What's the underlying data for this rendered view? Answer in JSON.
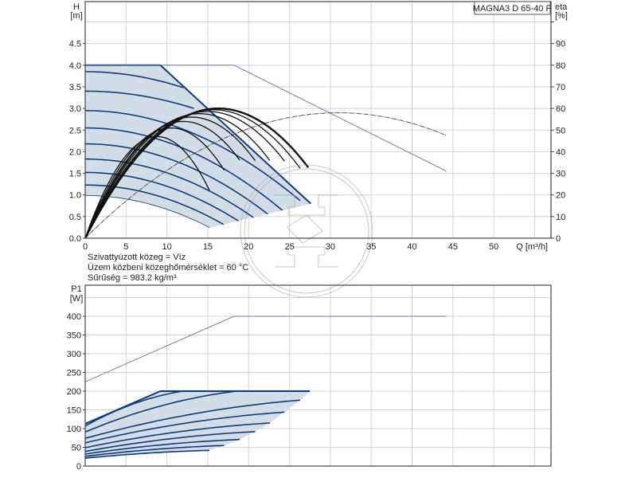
{
  "model_label": "MAGNA3 D 65-40 F",
  "fluid_info": [
    "Szivattyúzott közeg = Víz",
    "Üzem közbeni közeghőmérséklet = 60 °C",
    "Sűrűség = 983.2 kg/m³"
  ],
  "colors": {
    "speed_curve": "#0d3d80",
    "fill": "#d3dde8",
    "boundary_thin": "#6d82a6",
    "eta_curve": "#111111",
    "eta_max": "#555555",
    "grid": "#d2d2d2"
  },
  "chart_data": [
    {
      "type": "line",
      "panel": "head",
      "xlabel": "Q [m³/h]",
      "ylabel": [
        "H",
        "[m]"
      ],
      "y2label": [
        "eta",
        "[%]"
      ],
      "xlim": [
        0,
        57
      ],
      "ylim": [
        0,
        5.47
      ],
      "y2lim": [
        0,
        109.4
      ],
      "grid": true,
      "xticks": [
        0,
        5,
        10,
        15,
        20,
        25,
        30,
        35,
        40,
        45,
        50
      ],
      "xtick_labels": [
        "0",
        "5",
        "10",
        "15",
        "20",
        "25",
        "30",
        "35",
        "40",
        "45",
        "50"
      ],
      "yticks": [
        0,
        0.5,
        1,
        1.5,
        2,
        2.5,
        3,
        3.5,
        4,
        4.5
      ],
      "ytick_labels": [
        "0.0",
        "0.5",
        "1.0",
        "1.5",
        "2.0",
        "2.5",
        "3.0",
        "3.5",
        "4.0",
        "4.5"
      ],
      "y2ticks": [
        0,
        10,
        20,
        30,
        40,
        50,
        60,
        70,
        80,
        90
      ],
      "y2tick_labels": [
        "0",
        "10",
        "20",
        "30",
        "40",
        "50",
        "60",
        "70",
        "80",
        "90"
      ],
      "max_head_line": [
        [
          0,
          4.0
        ],
        [
          18.2,
          4.0
        ],
        [
          44.2,
          1.55
        ]
      ],
      "operating_area_boundary": [
        [
          0,
          4.0
        ],
        [
          9.2,
          4.0
        ],
        [
          27.6,
          0.8
        ]
      ],
      "speed_curves": [
        {
          "start": [
            0,
            3.85
          ],
          "end": [
            12.0,
            3.48
          ]
        },
        {
          "start": [
            0,
            3.4
          ],
          "end": [
            13.3,
            3.0
          ]
        },
        {
          "start": [
            0,
            2.95
          ],
          "end": [
            26.3,
            0.87
          ]
        },
        {
          "start": [
            0,
            2.55
          ],
          "end": [
            24.4,
            0.6
          ]
        },
        {
          "start": [
            0,
            2.18
          ],
          "end": [
            22.6,
            0.52
          ]
        },
        {
          "start": [
            0,
            1.83
          ],
          "end": [
            20.8,
            0.45
          ]
        },
        {
          "start": [
            0,
            1.52
          ],
          "end": [
            18.9,
            0.38
          ]
        },
        {
          "start": [
            0,
            1.23
          ],
          "end": [
            17.0,
            0.31
          ]
        },
        {
          "start": [
            0,
            0.98
          ],
          "end": [
            15.2,
            0.24
          ]
        }
      ],
      "efficiency_curves": [
        {
          "peak": [
            8.8,
            47
          ],
          "end_q": 15.2
        },
        {
          "peak": [
            10.5,
            51
          ],
          "end_q": 17.0
        },
        {
          "peak": [
            12.0,
            54
          ],
          "end_q": 18.9
        },
        {
          "peak": [
            13.0,
            56
          ],
          "end_q": 20.8
        },
        {
          "peak": [
            14.0,
            57.6
          ],
          "end_q": 22.6
        },
        {
          "peak": [
            15.0,
            58.6
          ],
          "end_q": 24.4
        },
        {
          "peak": [
            15.7,
            59.4
          ],
          "end_q": 26.3
        },
        {
          "peak": [
            16.3,
            60
          ],
          "end_q": 27.3,
          "bold": true
        }
      ],
      "max_efficiency_curve": {
        "peak": [
          31,
          58
        ],
        "end_q": 44.2
      }
    },
    {
      "type": "line",
      "panel": "power",
      "ylabel": [
        "P1",
        "[W]"
      ],
      "xlim": [
        0,
        57
      ],
      "ylim": [
        0,
        483
      ],
      "grid": true,
      "yticks": [
        0,
        50,
        100,
        150,
        200,
        250,
        300,
        350,
        400
      ],
      "ytick_labels": [
        "0",
        "50",
        "100",
        "150",
        "200",
        "250",
        "300",
        "350",
        "400"
      ],
      "max_power_line": [
        [
          0,
          225
        ],
        [
          18.2,
          400
        ],
        [
          44.2,
          400
        ]
      ],
      "operating_area_top": [
        [
          0,
          113
        ],
        [
          9.2,
          200
        ],
        [
          27.5,
          200
        ]
      ],
      "speed_curves": [
        {
          "start": [
            0,
            107
          ],
          "end": [
            11.9,
            200
          ]
        },
        {
          "start": [
            0,
            91
          ],
          "end": [
            18.5,
            200
          ]
        },
        {
          "start": [
            0,
            74
          ],
          "end": [
            26.3,
            176
          ]
        },
        {
          "start": [
            0,
            62
          ],
          "end": [
            24.4,
            144
          ]
        },
        {
          "start": [
            0,
            49
          ],
          "end": [
            22.6,
            115
          ]
        },
        {
          "start": [
            0,
            39
          ],
          "end": [
            20.8,
            92
          ]
        },
        {
          "start": [
            0,
            32
          ],
          "end": [
            18.9,
            71
          ]
        },
        {
          "start": [
            0,
            26
          ],
          "end": [
            17.0,
            55
          ]
        },
        {
          "start": [
            0,
            21
          ],
          "end": [
            15.2,
            42
          ]
        }
      ]
    }
  ]
}
